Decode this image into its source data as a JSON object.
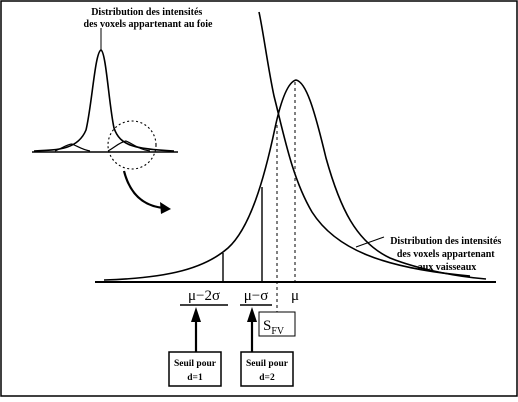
{
  "annotations": {
    "liver_label": [
      "Distribution des intensités",
      "des voxels appartenant au foie"
    ],
    "vessel_label": [
      "Distribution des intensités",
      "des voxels appartenant",
      "aux vaisseaux"
    ]
  },
  "axis_labels": {
    "mu_minus_2sigma": "μ−2σ",
    "mu_minus_sigma": "μ−σ",
    "mu": "μ",
    "threshold_base": "S",
    "threshold_sub": "FV"
  },
  "threshold_boxes": [
    {
      "line1": "Seuil pour",
      "line2": "d=1"
    },
    {
      "line1": "Seuil pour",
      "line2": "d=2"
    }
  ]
}
